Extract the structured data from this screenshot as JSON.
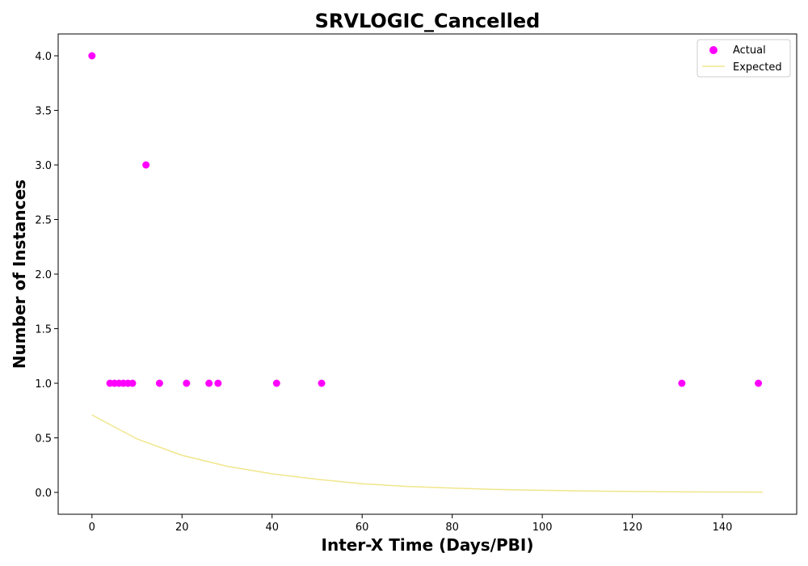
{
  "chart_data": {
    "type": "scatter",
    "title": "SRVLOGIC_Cancelled",
    "xlabel": "Inter-X Time (Days/PBI)",
    "ylabel": "Number of Instances",
    "xlim": [
      -7.5,
      156.5
    ],
    "ylim": [
      -0.2,
      4.2
    ],
    "xticks": [
      0,
      20,
      40,
      60,
      80,
      100,
      120,
      140
    ],
    "xtick_labels": [
      "0",
      "20",
      "40",
      "60",
      "80",
      "100",
      "120",
      "140"
    ],
    "yticks": [
      0.0,
      0.5,
      1.0,
      1.5,
      2.0,
      2.5,
      3.0,
      3.5,
      4.0
    ],
    "ytick_labels": [
      "0.0",
      "0.5",
      "1.0",
      "1.5",
      "2.0",
      "2.5",
      "3.0",
      "3.5",
      "4.0"
    ],
    "grid": false,
    "legend_position": "top-right",
    "series": [
      {
        "name": "Actual",
        "kind": "scatter",
        "color": "#ff00ff",
        "x": [
          0,
          4,
          5,
          6,
          7,
          8,
          9,
          12,
          15,
          21,
          26,
          28,
          41,
          51,
          131,
          148
        ],
        "y": [
          4,
          1,
          1,
          1,
          1,
          1,
          1,
          3,
          1,
          1,
          1,
          1,
          1,
          1,
          1,
          1
        ]
      },
      {
        "name": "Expected",
        "kind": "line",
        "color": "#f0e68c",
        "x": [
          0,
          10,
          20,
          30,
          40,
          50,
          60,
          70,
          80,
          90,
          100,
          110,
          120,
          130,
          140,
          149
        ],
        "y": [
          0.71,
          0.49,
          0.34,
          0.24,
          0.17,
          0.12,
          0.08,
          0.055,
          0.04,
          0.027,
          0.019,
          0.013,
          0.009,
          0.006,
          0.004,
          0.003
        ]
      }
    ]
  }
}
